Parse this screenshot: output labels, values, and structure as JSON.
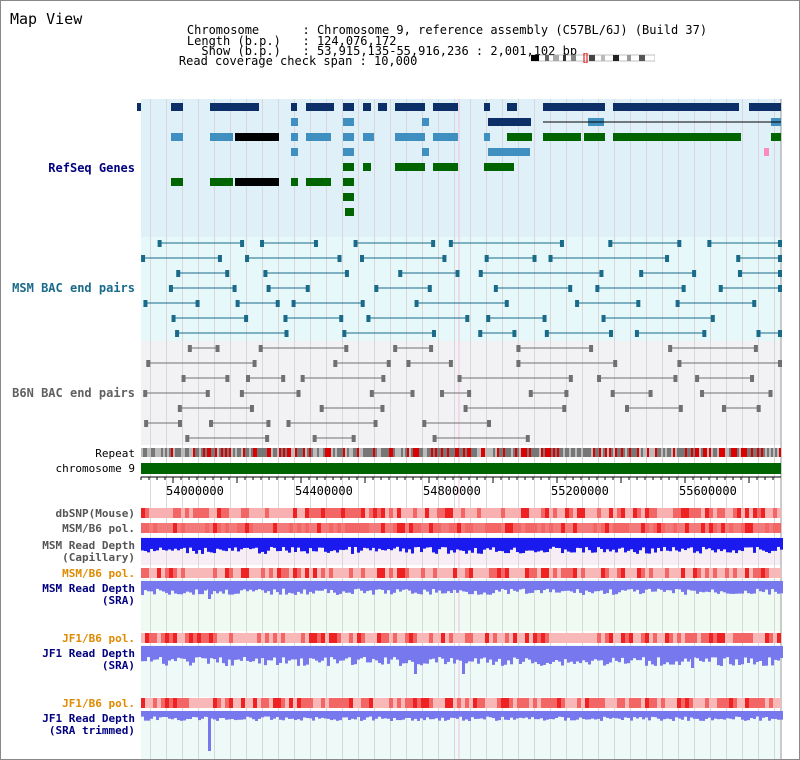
{
  "view_title": "Map View",
  "info": {
    "chromosome_label": "Chromosome",
    "chromosome_value": "Chromosome 9, reference assembly (C57BL/6J) (Build 37)",
    "length_label": "Length (b.p.)",
    "length_value": "124,076,172",
    "show_label": "Show (b.p.)",
    "show_value": "53,915,135-55,916,236 : 2,001,102 bp",
    "coverage_label": "Read coverage check span",
    "coverage_value": "10,000"
  },
  "tracks": {
    "refseq": "RefSeq Genes",
    "msm_bac": "MSM BAC end pairs",
    "b6n_bac": "B6N BAC end pairs",
    "repeat": "Repeat",
    "chromosome": "chromosome 9",
    "dbsnp": "dbSNP(Mouse)",
    "msm_b6_pol": "MSM/B6 pol.",
    "msm_read_depth_cap_1": "MSM Read Depth",
    "msm_read_depth_cap_2": "(Capillary)",
    "msm_b6_pol_2": "MSM/B6 pol.",
    "msm_read_depth_sra_1": "MSM Read Depth",
    "msm_read_depth_sra_2": "(SRA)",
    "jf1_b6_pol": "JF1/B6 pol.",
    "jf1_read_depth_sra_1": "JF1 Read Depth",
    "jf1_read_depth_sra_2": "(SRA)",
    "jf1_b6_pol_2": "JF1/B6 pol.",
    "jf1_read_depth_trim_1": "JF1 Read Depth",
    "jf1_read_depth_trim_2": "(SRA trimmed)"
  },
  "axis_ticks": [
    "54000000",
    "54400000",
    "54800000",
    "55200000",
    "55600000"
  ],
  "colors": {
    "refseq_dark": "#0b2f66",
    "refseq_mid": "#3f8fc0",
    "refseq_green": "#006400",
    "bac_msm": "#1a6a8a",
    "bac_b6n": "#707070",
    "chromosome_bar": "#006400",
    "depth_blue": "#1a1aee",
    "depth_light": "#7777ee",
    "pol_red": "#ee3333",
    "pol_pink": "#f4a0a0",
    "label_navy": "#000080",
    "label_orange": "#e08a00"
  }
}
